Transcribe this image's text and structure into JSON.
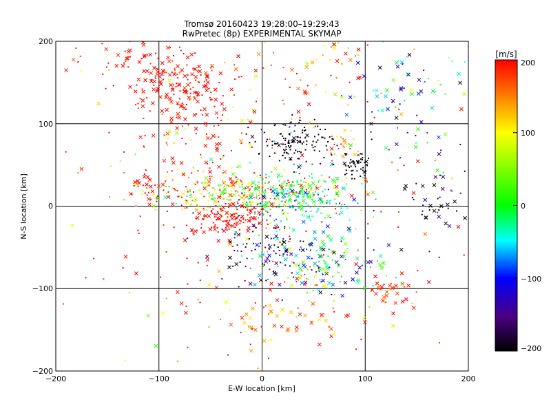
{
  "chart_data": [
    {
      "type": "scatter",
      "title": "Tromsø 20160423 19:28:00–19:29:43",
      "subtitle": "RwPretec (8p) EXPERIMENTAL SKYMAP",
      "xlabel": "E-W location [km]",
      "ylabel": "N-S location [km]",
      "xlim": [
        -200,
        200
      ],
      "ylim": [
        -200,
        200
      ],
      "xticks": [
        "−200",
        "−100",
        "0",
        "100",
        "200"
      ],
      "yticks": [
        "−200",
        "−100",
        "0",
        "100",
        "200"
      ],
      "grid": true,
      "marker_types": [
        "dot",
        "x"
      ],
      "color_quantity": "line-of-sight velocity",
      "clusters": [
        {
          "x": -82,
          "y": 145,
          "sx": 22,
          "sy": 22,
          "n": 150,
          "v": 195,
          "vs": 12,
          "xfrac": 0.5
        },
        {
          "x": -125,
          "y": 180,
          "sx": 30,
          "sy": 15,
          "n": 40,
          "v": 190,
          "vs": 15,
          "xfrac": 0.4
        },
        {
          "x": -15,
          "y": 15,
          "sx": 45,
          "sy": 12,
          "n": 340,
          "v": 90,
          "vs": 90,
          "xfrac": 0.15
        },
        {
          "x": 30,
          "y": 10,
          "sx": 28,
          "sy": 15,
          "n": 200,
          "v": -40,
          "vs": 40,
          "xfrac": 0.15
        },
        {
          "x": -30,
          "y": -15,
          "sx": 20,
          "sy": 10,
          "n": 120,
          "v": 200,
          "vs": 10,
          "xfrac": 0.3
        },
        {
          "x": 35,
          "y": 77,
          "sx": 20,
          "sy": 12,
          "n": 130,
          "v": -195,
          "vs": 15,
          "xfrac": 0.05
        },
        {
          "x": 90,
          "y": 48,
          "sx": 9,
          "sy": 9,
          "n": 55,
          "v": -200,
          "vs": 5,
          "xfrac": 0.05
        },
        {
          "x": 65,
          "y": -75,
          "sx": 30,
          "sy": 20,
          "n": 130,
          "v": -40,
          "vs": 70,
          "xfrac": 0.5
        },
        {
          "x": 10,
          "y": -55,
          "sx": 28,
          "sy": 18,
          "n": 110,
          "v": -150,
          "vs": 70,
          "xfrac": 0.3
        },
        {
          "x": 30,
          "y": -140,
          "sx": 30,
          "sy": 15,
          "n": 45,
          "v": 160,
          "vs": 40,
          "xfrac": 0.6
        },
        {
          "x": -110,
          "y": 22,
          "sx": 8,
          "sy": 8,
          "n": 25,
          "v": 200,
          "vs": 5,
          "xfrac": 0.4
        },
        {
          "x": -70,
          "y": 60,
          "sx": 35,
          "sy": 60,
          "n": 120,
          "v": 195,
          "vs": 10,
          "xfrac": 0.4
        },
        {
          "x": 140,
          "y": 130,
          "sx": 30,
          "sy": 40,
          "n": 80,
          "v": -60,
          "vs": 80,
          "xfrac": 0.6
        },
        {
          "x": 170,
          "y": 0,
          "sx": 15,
          "sy": 30,
          "n": 40,
          "v": -180,
          "vs": 30,
          "xfrac": 0.5
        },
        {
          "x": 120,
          "y": -105,
          "sx": 15,
          "sy": 10,
          "n": 30,
          "v": 190,
          "vs": 20,
          "xfrac": 0.6
        },
        {
          "x": 0,
          "y": 0,
          "sx": 110,
          "sy": 110,
          "n": 300,
          "v": 150,
          "vs": 80,
          "xfrac": 0.3
        },
        {
          "x": 80,
          "y": 70,
          "sx": 8,
          "sy": 10,
          "n": 20,
          "v": 160,
          "vs": 30,
          "xfrac": 0.3
        },
        {
          "x": 40,
          "y": 170,
          "sx": 40,
          "sy": 25,
          "n": 60,
          "v": 150,
          "vs": 60,
          "xfrac": 0.3
        }
      ],
      "colorbar": {
        "label": "[m/s]",
        "range": [
          -200,
          200
        ],
        "ticks": [
          "200",
          "100",
          "0",
          "−100",
          "−200"
        ]
      }
    }
  ]
}
